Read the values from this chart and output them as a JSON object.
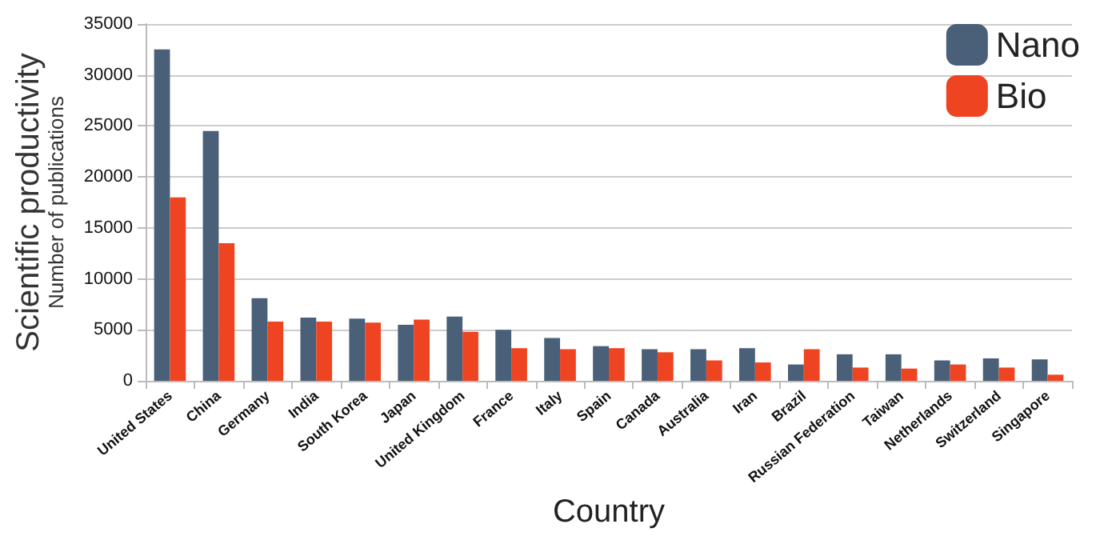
{
  "chart_data": {
    "type": "bar",
    "xlabel": "Country",
    "ylabel": "Scientific productivity\nNumber of publications",
    "categories": [
      "United States",
      "China",
      "Germany",
      "India",
      "South Korea",
      "Japan",
      "United Kingdom",
      "France",
      "Italy",
      "Spain",
      "Canada",
      "Australia",
      "Iran",
      "Brazil",
      "Russian Federation",
      "Taiwan",
      "Netherlands",
      "Switzerland",
      "Singapore"
    ],
    "series": [
      {
        "name": "Nano",
        "color": "#4a5f78",
        "values": [
          32500,
          24500,
          8100,
          6200,
          6100,
          5500,
          6300,
          5000,
          4200,
          3400,
          3100,
          3100,
          3200,
          1600,
          2600,
          2600,
          2000,
          2200,
          2100
        ]
      },
      {
        "name": "Bio",
        "color": "#ee4422",
        "values": [
          18000,
          13500,
          5800,
          5800,
          5700,
          6000,
          4800,
          3200,
          3100,
          3200,
          2800,
          2000,
          1800,
          3100,
          1300,
          1200,
          1600,
          1300,
          600
        ]
      }
    ],
    "ylim": [
      0,
      35000
    ],
    "yticks": [
      0,
      5000,
      10000,
      15000,
      20000,
      25000,
      30000,
      35000
    ],
    "grid": "y",
    "legend": "top right"
  }
}
